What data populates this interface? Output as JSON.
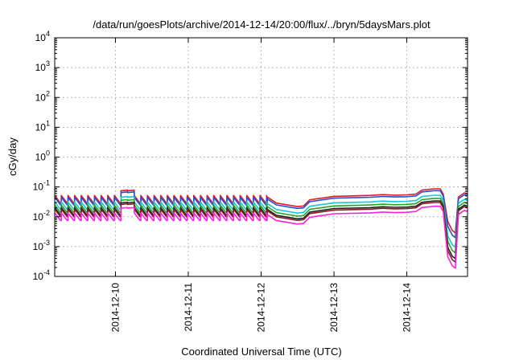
{
  "chart_data": {
    "type": "line",
    "title": "/data/run/goesPlots/archive/2014-12-14/20:00/flux/../bryn/5daysMars.plot",
    "xlabel": "Coordinated Universal Time (UTC)",
    "ylabel": "cGy/day",
    "yscale": "log",
    "ylim": [
      0.0001,
      10000
    ],
    "y_ticks": [
      {
        "value": 0.0001,
        "base": "10",
        "exp": "-4"
      },
      {
        "value": 0.001,
        "base": "10",
        "exp": "-3"
      },
      {
        "value": 0.01,
        "base": "10",
        "exp": "-2"
      },
      {
        "value": 0.1,
        "base": "10",
        "exp": "-1"
      },
      {
        "value": 1,
        "base": "10",
        "exp": "0"
      },
      {
        "value": 10,
        "base": "10",
        "exp": "1"
      },
      {
        "value": 100,
        "base": "10",
        "exp": "2"
      },
      {
        "value": 1000,
        "base": "10",
        "exp": "3"
      },
      {
        "value": 10000,
        "base": "10",
        "exp": "4"
      }
    ],
    "xlim": [
      "2014-12-09T04:00",
      "2014-12-14T20:00"
    ],
    "x_ticks": [
      {
        "value": "2014-12-10T00:00",
        "label": "2014-12-10"
      },
      {
        "value": "2014-12-11T00:00",
        "label": "2014-12-11"
      },
      {
        "value": "2014-12-12T00:00",
        "label": "2014-12-12"
      },
      {
        "value": "2014-12-13T00:00",
        "label": "2014-12-13"
      },
      {
        "value": "2014-12-14T00:00",
        "label": "2014-12-14"
      }
    ],
    "grid": true,
    "profile": {
      "sawtooth": {
        "start": "2014-12-09T04:00",
        "end": "2014-12-12T02:00",
        "teeth_per_day": 11,
        "high": 0.045,
        "low": 0.025,
        "bump": {
          "start": "2014-12-10T00:50",
          "end": "2014-12-10T05:50",
          "value": 0.068
        }
      },
      "points": [
        {
          "x": "2014-12-12T02:00",
          "y": 0.04
        },
        {
          "x": "2014-12-12T05:00",
          "y": 0.025
        },
        {
          "x": "2014-12-12T12:00",
          "y": 0.019
        },
        {
          "x": "2014-12-12T14:00",
          "y": 0.02
        },
        {
          "x": "2014-12-12T16:00",
          "y": 0.032
        },
        {
          "x": "2014-12-13T00:00",
          "y": 0.042
        },
        {
          "x": "2014-12-13T12:00",
          "y": 0.045
        },
        {
          "x": "2014-12-13T16:00",
          "y": 0.048
        },
        {
          "x": "2014-12-13T20:00",
          "y": 0.046
        },
        {
          "x": "2014-12-14T00:00",
          "y": 0.047
        },
        {
          "x": "2014-12-14T03:00",
          "y": 0.05
        },
        {
          "x": "2014-12-14T05:00",
          "y": 0.068
        },
        {
          "x": "2014-12-14T09:00",
          "y": 0.075
        },
        {
          "x": "2014-12-14T11:00",
          "y": 0.075
        },
        {
          "x": "2014-12-14T12:00",
          "y": 0.05
        },
        {
          "x": "2014-12-14T13:30",
          "y": 0.006
        },
        {
          "x": "2014-12-14T15:00",
          "y": 0.003
        },
        {
          "x": "2014-12-14T16:00",
          "y": 0.0025
        },
        {
          "x": "2014-12-14T17:00",
          "y": 0.04
        },
        {
          "x": "2014-12-14T19:00",
          "y": 0.055
        },
        {
          "x": "2014-12-14T20:00",
          "y": 0.05
        }
      ]
    },
    "series": [
      {
        "color": "#e41a1c",
        "factor": 1.15,
        "dip_extra": 1.0
      },
      {
        "color": "#1f4fe0",
        "factor": 1.0,
        "dip_extra": 0.8
      },
      {
        "color": "#17c8c8",
        "factor": 0.7,
        "dip_extra": 0.55
      },
      {
        "color": "#2ca02c",
        "factor": 0.55,
        "dip_extra": 0.45
      },
      {
        "color": "#222222",
        "factor": 0.45,
        "dip_extra": 0.35
      },
      {
        "color": "#8b1a1a",
        "factor": 0.4,
        "dip_extra": 0.3
      },
      {
        "color": "#ff1fe0",
        "factor": 0.3,
        "dip_extra": 0.25
      }
    ]
  }
}
